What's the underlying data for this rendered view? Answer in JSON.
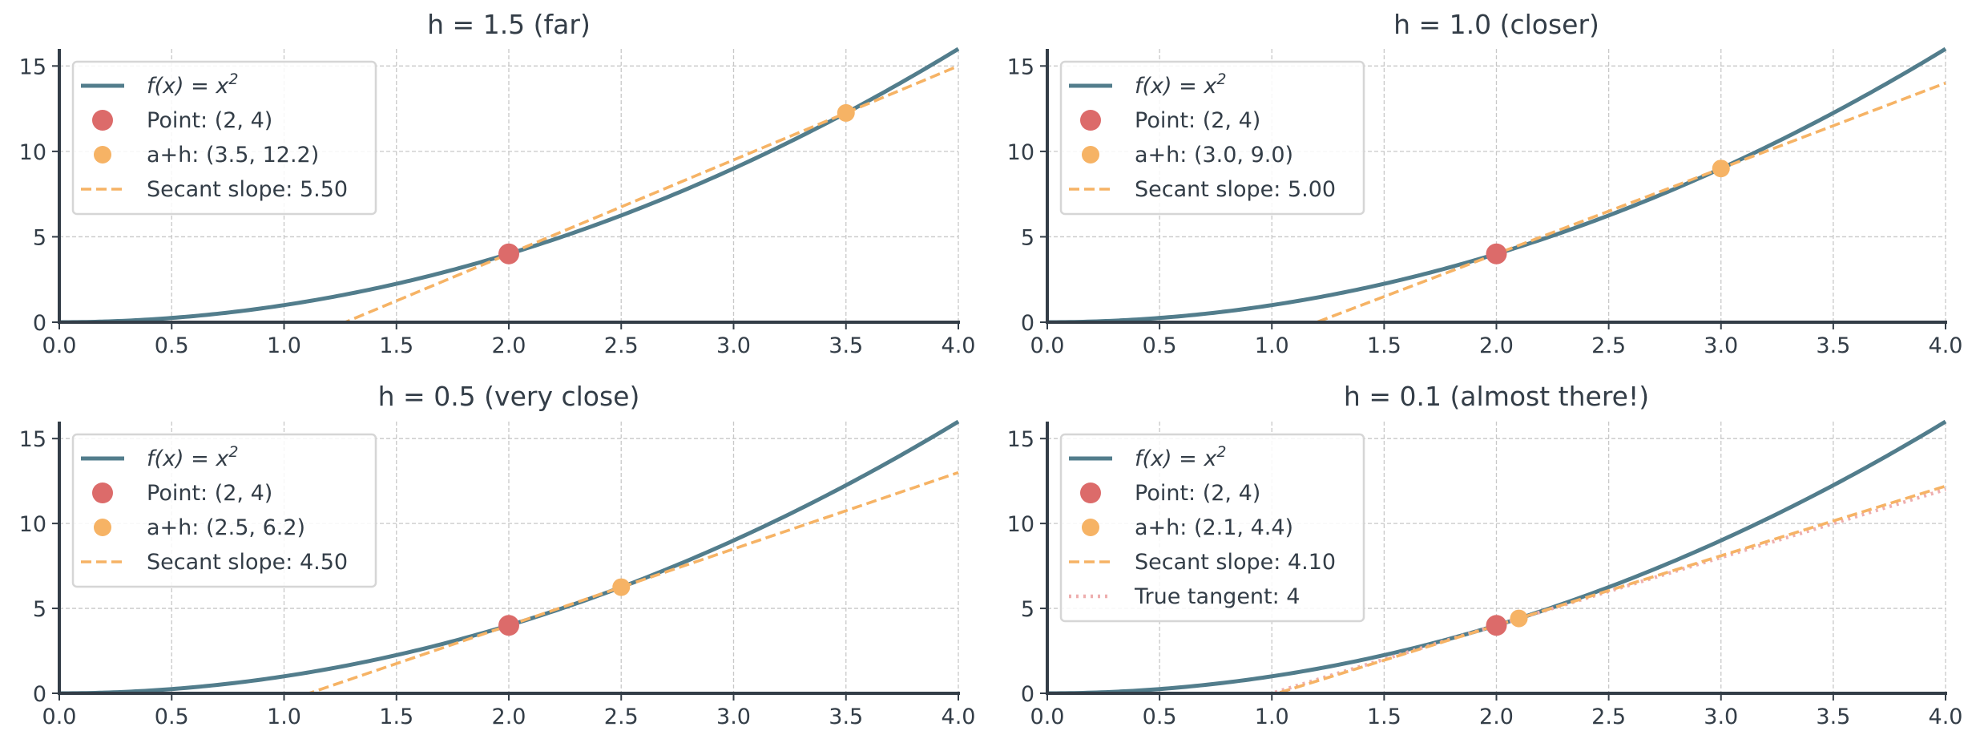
{
  "colors": {
    "curve": "#527d8c",
    "point": "#dc6b6a",
    "secant_point": "#f6b365",
    "secant_line": "#f6b365",
    "tangent_line": "#eeaeae",
    "spine": "#333d47",
    "grid": "#c8c8c8",
    "text": "#333d47",
    "legend_border": "#d6d6d6"
  },
  "chart_data": [
    {
      "type": "line",
      "title": "h = 1.5 (far)",
      "xlim": [
        0,
        4
      ],
      "ylim": [
        0,
        16
      ],
      "xticks": [
        "0.0",
        "0.5",
        "1.0",
        "1.5",
        "2.0",
        "2.5",
        "3.0",
        "3.5",
        "4.0"
      ],
      "xtick_values": [
        0,
        0.5,
        1,
        1.5,
        2,
        2.5,
        3,
        3.5,
        4
      ],
      "yticks": [
        "0",
        "5",
        "10",
        "15"
      ],
      "ytick_values": [
        0,
        5,
        10,
        15
      ],
      "grid": true,
      "legend_position": "top-left",
      "function": "x^2",
      "a": 2,
      "h": 1.5,
      "point": [
        2,
        4
      ],
      "secant_point": [
        3.5,
        12.25
      ],
      "secant_slope": 5.5,
      "show_tangent": false,
      "legend": [
        {
          "kind": "line",
          "label_prefix": "f(x) = x",
          "label_sup": "2"
        },
        {
          "kind": "point",
          "label": "Point: (2, 4)"
        },
        {
          "kind": "secant-point",
          "label": "a+h: (3.5, 12.2)"
        },
        {
          "kind": "secant-line",
          "label": "Secant slope: 5.50"
        }
      ]
    },
    {
      "type": "line",
      "title": "h = 1.0 (closer)",
      "xlim": [
        0,
        4
      ],
      "ylim": [
        0,
        16
      ],
      "xticks": [
        "0.0",
        "0.5",
        "1.0",
        "1.5",
        "2.0",
        "2.5",
        "3.0",
        "3.5",
        "4.0"
      ],
      "xtick_values": [
        0,
        0.5,
        1,
        1.5,
        2,
        2.5,
        3,
        3.5,
        4
      ],
      "yticks": [
        "0",
        "5",
        "10",
        "15"
      ],
      "ytick_values": [
        0,
        5,
        10,
        15
      ],
      "grid": true,
      "legend_position": "top-left",
      "function": "x^2",
      "a": 2,
      "h": 1.0,
      "point": [
        2,
        4
      ],
      "secant_point": [
        3.0,
        9.0
      ],
      "secant_slope": 5.0,
      "show_tangent": false,
      "legend": [
        {
          "kind": "line",
          "label_prefix": "f(x) = x",
          "label_sup": "2"
        },
        {
          "kind": "point",
          "label": "Point: (2, 4)"
        },
        {
          "kind": "secant-point",
          "label": "a+h: (3.0, 9.0)"
        },
        {
          "kind": "secant-line",
          "label": "Secant slope: 5.00"
        }
      ]
    },
    {
      "type": "line",
      "title": "h = 0.5 (very close)",
      "xlim": [
        0,
        4
      ],
      "ylim": [
        0,
        16
      ],
      "xticks": [
        "0.0",
        "0.5",
        "1.0",
        "1.5",
        "2.0",
        "2.5",
        "3.0",
        "3.5",
        "4.0"
      ],
      "xtick_values": [
        0,
        0.5,
        1,
        1.5,
        2,
        2.5,
        3,
        3.5,
        4
      ],
      "yticks": [
        "0",
        "5",
        "10",
        "15"
      ],
      "ytick_values": [
        0,
        5,
        10,
        15
      ],
      "grid": true,
      "legend_position": "top-left",
      "function": "x^2",
      "a": 2,
      "h": 0.5,
      "point": [
        2,
        4
      ],
      "secant_point": [
        2.5,
        6.25
      ],
      "secant_slope": 4.5,
      "show_tangent": false,
      "legend": [
        {
          "kind": "line",
          "label_prefix": "f(x) = x",
          "label_sup": "2"
        },
        {
          "kind": "point",
          "label": "Point: (2, 4)"
        },
        {
          "kind": "secant-point",
          "label": "a+h: (2.5, 6.2)"
        },
        {
          "kind": "secant-line",
          "label": "Secant slope: 4.50"
        }
      ]
    },
    {
      "type": "line",
      "title": "h = 0.1 (almost there!)",
      "xlim": [
        0,
        4
      ],
      "ylim": [
        0,
        16
      ],
      "xticks": [
        "0.0",
        "0.5",
        "1.0",
        "1.5",
        "2.0",
        "2.5",
        "3.0",
        "3.5",
        "4.0"
      ],
      "xtick_values": [
        0,
        0.5,
        1,
        1.5,
        2,
        2.5,
        3,
        3.5,
        4
      ],
      "yticks": [
        "0",
        "5",
        "10",
        "15"
      ],
      "ytick_values": [
        0,
        5,
        10,
        15
      ],
      "grid": true,
      "legend_position": "top-left",
      "function": "x^2",
      "a": 2,
      "h": 0.1,
      "point": [
        2,
        4
      ],
      "secant_point": [
        2.1,
        4.41
      ],
      "secant_slope": 4.1,
      "show_tangent": true,
      "tangent_slope": 4,
      "legend": [
        {
          "kind": "line",
          "label_prefix": "f(x) = x",
          "label_sup": "2"
        },
        {
          "kind": "point",
          "label": "Point: (2, 4)"
        },
        {
          "kind": "secant-point",
          "label": "a+h: (2.1, 4.4)"
        },
        {
          "kind": "secant-line",
          "label": "Secant slope: 4.10"
        },
        {
          "kind": "tangent-line",
          "label": "True tangent: 4"
        }
      ]
    }
  ]
}
